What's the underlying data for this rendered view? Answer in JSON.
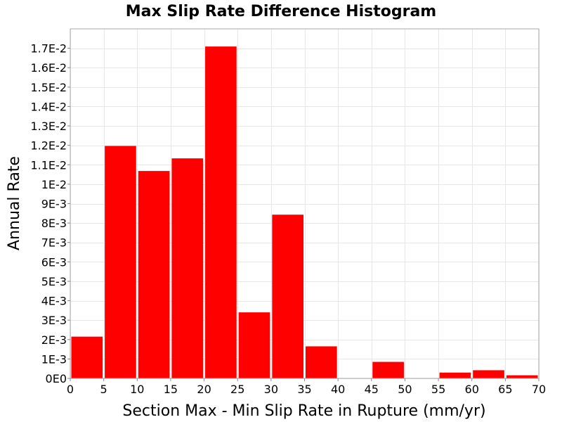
{
  "chart_data": {
    "type": "bar",
    "title": "Max Slip Rate Difference Histogram",
    "xlabel": "Section Max - Min Slip Rate in Rupture (mm/yr)",
    "ylabel": "Annual Rate",
    "xlim": [
      0,
      70
    ],
    "ylim": [
      0,
      0.018
    ],
    "grid": true,
    "bar_color": "#ff0000",
    "bin_width": 5,
    "x_ticks": [
      0,
      5,
      10,
      15,
      20,
      25,
      30,
      35,
      40,
      45,
      50,
      55,
      60,
      65,
      70
    ],
    "x_tick_labels": [
      "0",
      "5",
      "10",
      "15",
      "20",
      "25",
      "30",
      "35",
      "40",
      "45",
      "50",
      "55",
      "60",
      "65",
      "70"
    ],
    "y_ticks": [
      0,
      0.001,
      0.002,
      0.003,
      0.004,
      0.005,
      0.006,
      0.007,
      0.008,
      0.009,
      0.01,
      0.011,
      0.012,
      0.013,
      0.014,
      0.015,
      0.016,
      0.017
    ],
    "y_tick_labels": [
      "0E0",
      "1E-3",
      "2E-3",
      "3E-3",
      "4E-3",
      "5E-3",
      "6E-3",
      "7E-3",
      "8E-3",
      "9E-3",
      "1E-2",
      "1.1E-2",
      "1.2E-2",
      "1.3E-2",
      "1.4E-2",
      "1.5E-2",
      "1.6E-2",
      "1.7E-2"
    ],
    "bins": [
      {
        "x_start": 0,
        "x_end": 5,
        "value": 0.00215
      },
      {
        "x_start": 5,
        "x_end": 10,
        "value": 0.01197
      },
      {
        "x_start": 10,
        "x_end": 15,
        "value": 0.01068
      },
      {
        "x_start": 15,
        "x_end": 20,
        "value": 0.01133
      },
      {
        "x_start": 20,
        "x_end": 25,
        "value": 0.01709
      },
      {
        "x_start": 25,
        "x_end": 30,
        "value": 0.0034
      },
      {
        "x_start": 30,
        "x_end": 35,
        "value": 0.00843
      },
      {
        "x_start": 35,
        "x_end": 40,
        "value": 0.00165
      },
      {
        "x_start": 45,
        "x_end": 50,
        "value": 0.00085
      },
      {
        "x_start": 55,
        "x_end": 60,
        "value": 0.0003
      },
      {
        "x_start": 60,
        "x_end": 65,
        "value": 0.00042
      },
      {
        "x_start": 65,
        "x_end": 70,
        "value": 0.00016
      }
    ]
  }
}
